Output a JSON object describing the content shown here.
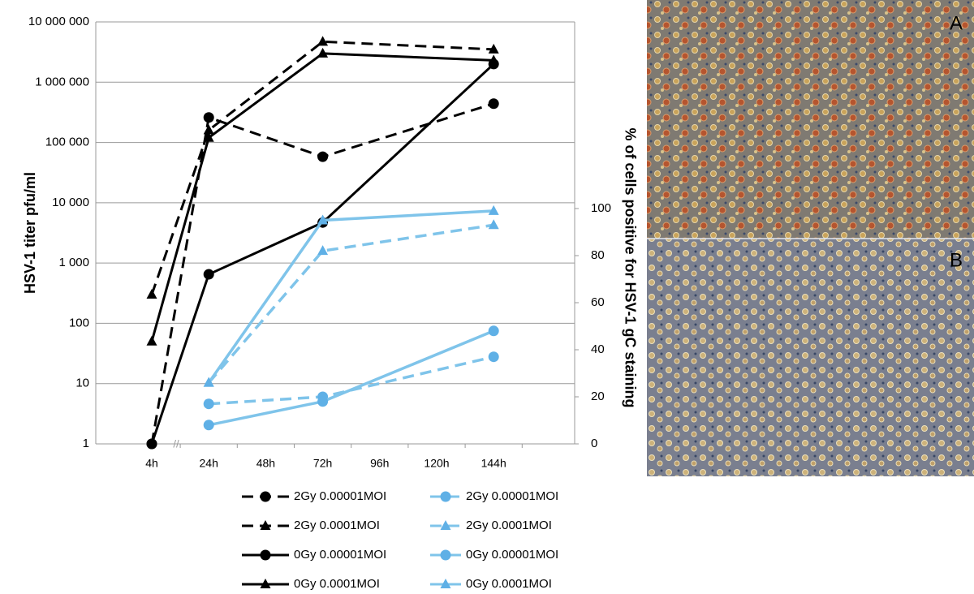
{
  "chart_data": {
    "type": "line",
    "y_label": "HSV-1 titer pfu/ml",
    "y2_label": "% of cells positive for HSV-1 gC staining",
    "x_break_label": "//",
    "categories": [
      "4h",
      "24h",
      "48h",
      "72h",
      "96h",
      "120h",
      "144h"
    ],
    "log_scale": true,
    "grid": true,
    "ylim": [
      1,
      10000000
    ],
    "yticks": [
      1,
      10,
      100,
      {
        "value": 1000,
        "label": "1 000"
      },
      {
        "value": 10000,
        "label": "10 000"
      },
      {
        "value": 100000,
        "label": "100 000"
      },
      {
        "value": 1000000,
        "label": "1 000 000"
      },
      {
        "value": 10000000,
        "label": "10 000 000"
      }
    ],
    "y2lim": [
      0,
      179.3
    ],
    "y2ticks": [
      0,
      20,
      40,
      60,
      80,
      100
    ],
    "legend": "bottom",
    "series": [
      {
        "name": "2Gy 0.00001MOI",
        "color": "#000000",
        "dashed": true,
        "marker": "circle",
        "x": [
          "4h",
          "24h",
          "72h",
          "144h"
        ],
        "values": [
          1,
          260000,
          58000,
          440000
        ]
      },
      {
        "name": "2Gy 0.0001MOI",
        "color": "#000000",
        "dashed": true,
        "marker": "triangle",
        "x": [
          "4h",
          "24h",
          "72h",
          "144h"
        ],
        "values": [
          300,
          160000,
          4700000,
          3500000
        ]
      },
      {
        "name": "0Gy 0.00001MOI",
        "color": "#000000",
        "dashed": false,
        "marker": "circle",
        "x": [
          "4h",
          "24h",
          "72h",
          "144h"
        ],
        "values": [
          1,
          650,
          4700,
          2000000
        ]
      },
      {
        "name": "0Gy 0.0001MOI",
        "color": "#000000",
        "dashed": false,
        "marker": "triangle",
        "x": [
          "4h",
          "24h",
          "72h",
          "144h"
        ],
        "values": [
          50,
          120000,
          3000000,
          2300000
        ]
      },
      {
        "name": "2Gy 0.00001MOI",
        "color": "#7fc4ea",
        "dashed": true,
        "marker": "circle",
        "axis": "y2",
        "x": [
          "24h",
          "72h",
          "144h"
        ],
        "values": [
          17,
          20,
          37
        ]
      },
      {
        "name": "2Gy 0.0001MOI",
        "color": "#7fc4ea",
        "dashed": true,
        "marker": "triangle",
        "axis": "y2",
        "x": [
          "24h",
          "72h",
          "144h"
        ],
        "values": [
          26,
          82,
          93
        ]
      },
      {
        "name": "0Gy 0.00001MOI",
        "color": "#7fc4ea",
        "dashed": false,
        "marker": "circle",
        "axis": "y2",
        "x": [
          "24h",
          "72h",
          "144h"
        ],
        "values": [
          8,
          18,
          48
        ]
      },
      {
        "name": "0Gy 0.0001MOI",
        "color": "#7fc4ea",
        "dashed": false,
        "marker": "triangle",
        "axis": "y2",
        "x": [
          "24h",
          "72h",
          "144h"
        ],
        "values": [
          26,
          95,
          99
        ]
      }
    ]
  },
  "panels": [
    {
      "label": "A"
    },
    {
      "label": "B"
    }
  ]
}
